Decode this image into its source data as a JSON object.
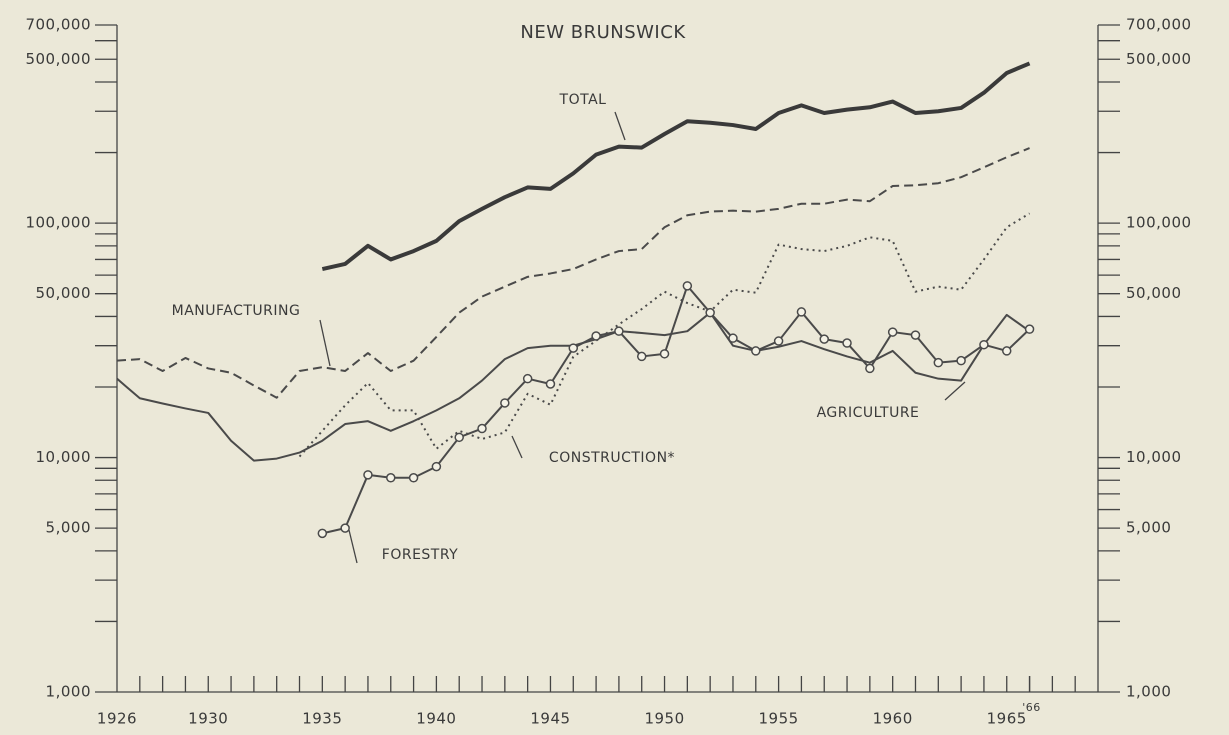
{
  "chart_data": {
    "type": "line",
    "title": "NEW BRUNSWICK",
    "x": [
      1926,
      1927,
      1928,
      1929,
      1930,
      1931,
      1932,
      1933,
      1934,
      1935,
      1936,
      1937,
      1938,
      1939,
      1940,
      1941,
      1942,
      1943,
      1944,
      1945,
      1946,
      1947,
      1948,
      1949,
      1950,
      1951,
      1952,
      1953,
      1954,
      1955,
      1956,
      1957,
      1958,
      1959,
      1960,
      1961,
      1962,
      1963,
      1964,
      1965,
      1966
    ],
    "xlim": [
      1926,
      1969
    ],
    "xticks": [
      1926,
      1930,
      1935,
      1940,
      1945,
      1950,
      1955,
      1960,
      1965
    ],
    "x_note_tick": {
      "value": 1966,
      "label": "'66"
    },
    "xticks_minor": [
      1927,
      1928,
      1929,
      1930,
      1931,
      1932,
      1933,
      1934,
      1935,
      1936,
      1937,
      1938,
      1939,
      1940,
      1941,
      1942,
      1943,
      1944,
      1945,
      1946,
      1947,
      1948,
      1949,
      1950,
      1951,
      1952,
      1953,
      1954,
      1955,
      1956,
      1957,
      1958,
      1959,
      1960,
      1961,
      1962,
      1963,
      1964,
      1965,
      1966,
      1967,
      1968
    ],
    "ylim": [
      1000,
      700000
    ],
    "log_scale": true,
    "yticks": [
      {
        "value": 1000,
        "label": "1,000"
      },
      {
        "value": 5000,
        "label": "5,000"
      },
      {
        "value": 10000,
        "label": "10,000"
      },
      {
        "value": 50000,
        "label": "50,000"
      },
      {
        "value": 100000,
        "label": "100,000"
      },
      {
        "value": 500000,
        "label": "500,000"
      },
      {
        "value": 700000,
        "label": "700,000"
      }
    ],
    "yticks_minor": [
      2000,
      3000,
      4000,
      6000,
      7000,
      8000,
      9000,
      20000,
      30000,
      40000,
      60000,
      70000,
      80000,
      90000,
      200000,
      300000,
      400000,
      600000
    ],
    "series": [
      {
        "name": "TOTAL",
        "color": "#3a3a3a",
        "style": "thick",
        "values": [
          null,
          null,
          null,
          null,
          null,
          null,
          null,
          null,
          null,
          63700,
          67000,
          80000,
          70000,
          76000,
          84000,
          102000,
          115000,
          129000,
          142000,
          140000,
          163000,
          196000,
          212000,
          210000,
          240000,
          272000,
          268000,
          262000,
          252000,
          295000,
          318000,
          295000,
          305000,
          312000,
          330000,
          295000,
          300000,
          310000,
          360000,
          437000,
          480000
        ]
      },
      {
        "name": "MANUFACTURING",
        "color": "#4a4a4a",
        "style": "dashed",
        "values": [
          25900,
          26300,
          23400,
          26600,
          24000,
          23000,
          20300,
          18000,
          23400,
          24300,
          23400,
          27900,
          23400,
          25900,
          32700,
          41500,
          48600,
          53600,
          59000,
          61000,
          63700,
          70000,
          76000,
          77500,
          96000,
          108000,
          112000,
          113000,
          112000,
          115000,
          121000,
          121000,
          126000,
          124000,
          144000,
          145000,
          148000,
          157000,
          173000,
          191000,
          209000
        ]
      },
      {
        "name": "CONSTRUCTION*",
        "color": "#4a4a4a",
        "style": "dotted",
        "values": [
          null,
          null,
          null,
          null,
          null,
          null,
          null,
          null,
          10100,
          13000,
          16700,
          20800,
          15900,
          15900,
          10900,
          13000,
          12000,
          12800,
          18700,
          16800,
          26900,
          31500,
          37000,
          43000,
          51000,
          45600,
          42000,
          52000,
          50500,
          81000,
          77500,
          76000,
          80000,
          87000,
          84000,
          51000,
          53600,
          52000,
          70000,
          96000,
          110000
        ]
      },
      {
        "name": "AGRICULTURE",
        "color": "#4a4a4a",
        "style": "solid",
        "values": [
          21700,
          17900,
          17000,
          16200,
          15500,
          11800,
          9700,
          9900,
          10500,
          11800,
          13900,
          14300,
          13000,
          14300,
          15900,
          17900,
          21300,
          26300,
          29300,
          30000,
          30000,
          32000,
          34600,
          34000,
          33300,
          34600,
          41500,
          30000,
          28500,
          29700,
          31400,
          29000,
          27000,
          25400,
          28500,
          23000,
          21700,
          21300,
          30300,
          40600,
          34600
        ]
      },
      {
        "name": "FORESTRY",
        "color": "#4a4a4a",
        "style": "circles",
        "values": [
          null,
          null,
          null,
          null,
          null,
          null,
          null,
          null,
          null,
          4750,
          5000,
          8440,
          8200,
          8200,
          9150,
          12200,
          13300,
          17100,
          21700,
          20600,
          29300,
          33000,
          34600,
          27000,
          27700,
          54000,
          41500,
          32300,
          28500,
          31400,
          41800,
          32000,
          30800,
          24000,
          34300,
          33300,
          25400,
          25900,
          30300,
          28500,
          35300
        ]
      }
    ]
  }
}
